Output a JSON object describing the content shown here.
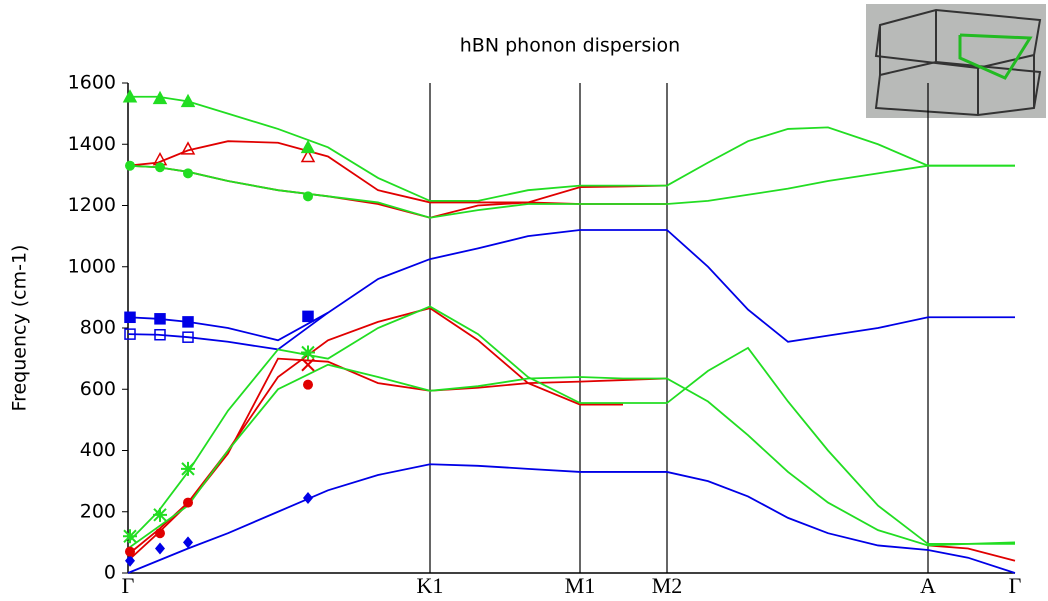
{
  "chart_data": {
    "type": "line",
    "title": "hBN phonon dispersion",
    "y_label": "Frequency (cm-1)",
    "xlim": [
      0,
      887
    ],
    "ylim": [
      0,
      1600
    ],
    "xticks": [
      {
        "value": 0,
        "label": "Γ"
      },
      {
        "value": 302,
        "label": "K1"
      },
      {
        "value": 452,
        "label": "M1"
      },
      {
        "value": 539,
        "label": "M2"
      },
      {
        "value": 800,
        "label": "A"
      },
      {
        "value": 887,
        "label": "Γ"
      }
    ],
    "yticks": [
      0,
      200,
      400,
      600,
      800,
      1000,
      1200,
      1400,
      1600
    ],
    "xgrid": true,
    "x": [
      0,
      30,
      60,
      100,
      150,
      200,
      250,
      302,
      350,
      400,
      452,
      495,
      539,
      580,
      620,
      660,
      700,
      750,
      800,
      840,
      887
    ],
    "series": [
      {
        "color": "#0000e6",
        "values": [
          0,
          40,
          80,
          130,
          200,
          270,
          320,
          355,
          350,
          340,
          330,
          330,
          330,
          300,
          250,
          180,
          130,
          90,
          75,
          50,
          0
        ]
      },
      {
        "color": "#0000e6",
        "values": [
          835,
          830,
          820,
          800,
          760,
          850,
          960,
          1025,
          1060,
          1100,
          1120,
          1120,
          1120,
          1000,
          860,
          755,
          775,
          800,
          835,
          835,
          835
        ]
      },
      {
        "color": "#0000e6",
        "values": [
          780,
          778,
          770,
          755,
          730,
          850,
          null,
          null,
          null,
          null,
          null,
          null,
          null,
          null,
          null,
          null,
          null,
          null,
          null,
          null,
          null
        ]
      },
      {
        "color": "#e00000",
        "values": [
          60,
          140,
          230,
          400,
          640,
          760,
          820,
          865,
          760,
          620,
          550,
          550,
          null,
          null,
          null,
          null,
          null,
          null,
          null,
          null,
          null
        ]
      },
      {
        "color": "#e00000",
        "values": [
          40,
          130,
          225,
          390,
          700,
          690,
          620,
          595,
          605,
          620,
          625,
          630,
          635,
          null,
          null,
          null,
          null,
          null,
          90,
          80,
          40
        ]
      },
      {
        "color": "#e00000",
        "values": [
          1330,
          1340,
          1380,
          1410,
          1405,
          1360,
          1250,
          1210,
          1210,
          1210,
          1260,
          1262,
          1265,
          null,
          null,
          null,
          null,
          null,
          null,
          null,
          null
        ]
      },
      {
        "color": "#e00000",
        "values": [
          1330,
          1325,
          1310,
          1280,
          1250,
          1230,
          1205,
          1160,
          1200,
          1210,
          1205,
          1205,
          1205,
          null,
          null,
          null,
          null,
          null,
          null,
          null,
          null
        ]
      },
      {
        "color": "#22dd22",
        "values": [
          100,
          200,
          330,
          530,
          730,
          700,
          800,
          870,
          780,
          640,
          555,
          555,
          555,
          660,
          735,
          560,
          400,
          220,
          95,
          95,
          100
        ]
      },
      {
        "color": "#22dd22",
        "values": [
          80,
          150,
          220,
          400,
          600,
          680,
          640,
          595,
          610,
          635,
          640,
          635,
          635,
          560,
          450,
          330,
          230,
          140,
          90,
          95,
          95
        ]
      },
      {
        "color": "#22dd22",
        "values": [
          1555,
          1555,
          1540,
          1500,
          1450,
          1390,
          1290,
          1215,
          1215,
          1250,
          1265,
          1265,
          1265,
          1340,
          1410,
          1450,
          1455,
          1400,
          1330,
          1330,
          1330
        ]
      },
      {
        "color": "#22dd22",
        "values": [
          1330,
          1325,
          1310,
          1280,
          1250,
          1230,
          1210,
          1160,
          1185,
          1205,
          1205,
          1205,
          1205,
          1215,
          1235,
          1255,
          1280,
          1305,
          1330,
          1330,
          1330
        ]
      }
    ],
    "markers": [
      {
        "marker": "diamond",
        "color": "#0000e6",
        "x": [
          2,
          32,
          60,
          180
        ],
        "y": [
          40,
          80,
          100,
          245
        ]
      },
      {
        "marker": "square",
        "color": "#0000e6",
        "x": [
          2,
          32,
          60,
          180
        ],
        "y": [
          835,
          830,
          820,
          838
        ]
      },
      {
        "marker": "square-open",
        "color": "#0000e6",
        "x": [
          2,
          32,
          60
        ],
        "y": [
          780,
          778,
          770
        ]
      },
      {
        "marker": "circle",
        "color": "#e00000",
        "x": [
          2,
          32,
          60,
          180
        ],
        "y": [
          70,
          130,
          230,
          615
        ]
      },
      {
        "marker": "x",
        "color": "#e00000",
        "x": [
          180
        ],
        "y": [
          680
        ]
      },
      {
        "marker": "triangle-open",
        "color": "#e00000",
        "x": [
          32,
          60,
          180
        ],
        "y": [
          1350,
          1385,
          1360
        ]
      },
      {
        "marker": "star",
        "color": "#22dd22",
        "x": [
          2,
          32,
          60,
          180
        ],
        "y": [
          120,
          190,
          340,
          720
        ]
      },
      {
        "marker": "triangle",
        "color": "#22dd22",
        "x": [
          2,
          32,
          60,
          180
        ],
        "y": [
          1555,
          1550,
          1540,
          1390
        ]
      },
      {
        "marker": "circle",
        "color": "#22dd22",
        "x": [
          2,
          32,
          60,
          180
        ],
        "y": [
          1330,
          1325,
          1305,
          1230
        ]
      }
    ]
  }
}
